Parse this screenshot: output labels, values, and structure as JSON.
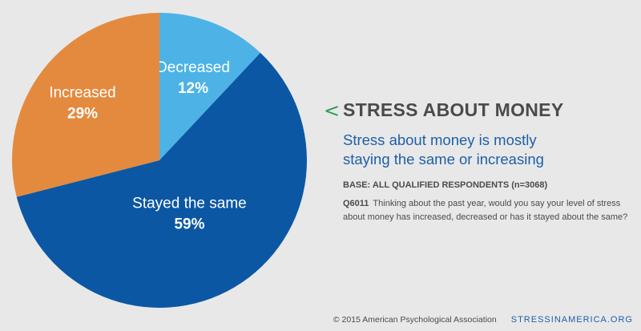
{
  "chart_data": {
    "type": "pie",
    "slices": [
      {
        "label": "Decreased",
        "value": 12,
        "value_label": "12%",
        "color": "#4db3e6"
      },
      {
        "label": "Stayed the same",
        "value": 59,
        "value_label": "59%",
        "color": "#0b57a3"
      },
      {
        "label": "Increased",
        "value": 29,
        "value_label": "29%",
        "color": "#e48a3e"
      }
    ]
  },
  "panel": {
    "chevron": "<",
    "title": "STRESS ABOUT MONEY",
    "subtitle": "Stress about money is mostly staying the same or increasing",
    "base": "BASE: ALL QUALIFIED RESPONDENTS (n=3068)",
    "question_id": "Q6011",
    "question": "Thinking about the past year, would you say your level of stress about money has increased, decreased or has it stayed about the same?"
  },
  "footer": {
    "copyright": "© 2015 American Psychological Association",
    "site": "STRESSINAMERICA.ORG"
  },
  "colors": {
    "background": "#e8e8e9",
    "accent_green": "#2e9b57",
    "title_gray": "#4b4b4e",
    "subtitle_blue": "#1f5fa5"
  }
}
